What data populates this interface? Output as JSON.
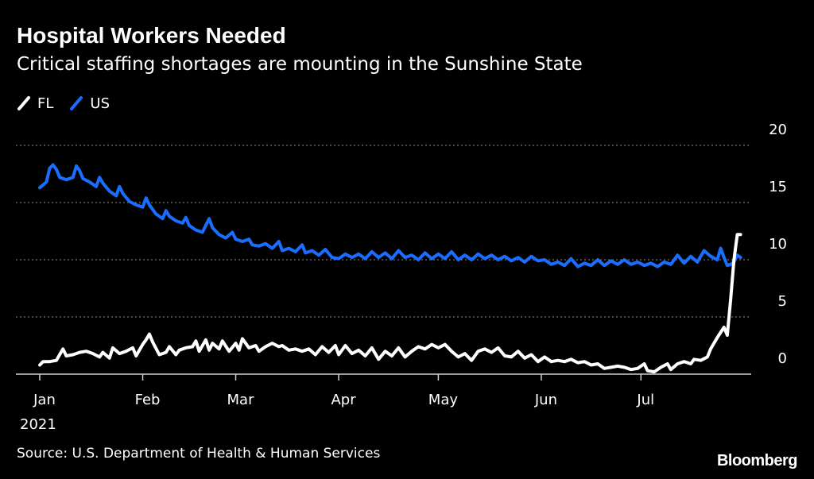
{
  "header": {
    "title": "Hospital Workers Needed",
    "subtitle": "Critical staffing shortages are mounting in the Sunshine State"
  },
  "footer": {
    "source": "Source: U.S. Department of Health & Human Services",
    "logo": "Bloomberg"
  },
  "colors": {
    "background": "#000000",
    "FL": "#ffffff",
    "US": "#1a6eff",
    "grid": "#8c8c8c",
    "text": "#ffffff"
  },
  "chart_data": {
    "type": "line",
    "title": "Hospital Workers Needed",
    "subtitle": "Critical staffing shortages are mounting in the Sunshine State",
    "xlabel": "",
    "ylabel": "",
    "ylim": [
      0,
      20
    ],
    "yticks": [
      0,
      5,
      10,
      15,
      20
    ],
    "ytick_labels": [
      "0",
      "5",
      "10",
      "15",
      "20"
    ],
    "xlim": [
      "2021-01-01",
      "2021-08-02"
    ],
    "xticks": [
      {
        "date": "2021-01-01",
        "label": "Jan",
        "sublabel": "2021"
      },
      {
        "date": "2021-02-01",
        "label": "Feb"
      },
      {
        "date": "2021-03-01",
        "label": "Mar"
      },
      {
        "date": "2021-04-01",
        "label": "Apr"
      },
      {
        "date": "2021-05-01",
        "label": "May"
      },
      {
        "date": "2021-06-01",
        "label": "Jun"
      },
      {
        "date": "2021-07-01",
        "label": "Jul"
      }
    ],
    "grid": true,
    "legend_position": "top-left",
    "series": [
      {
        "name": "FL",
        "color": "#ffffff",
        "points": [
          [
            "2021-01-01",
            0.8
          ],
          [
            "2021-01-02",
            1.1
          ],
          [
            "2021-01-04",
            1.1
          ],
          [
            "2021-01-06",
            1.2
          ],
          [
            "2021-01-08",
            2.2
          ],
          [
            "2021-01-09",
            1.6
          ],
          [
            "2021-01-11",
            1.7
          ],
          [
            "2021-01-13",
            1.9
          ],
          [
            "2021-01-15",
            2.0
          ],
          [
            "2021-01-17",
            1.8
          ],
          [
            "2021-01-19",
            1.5
          ],
          [
            "2021-01-20",
            1.9
          ],
          [
            "2021-01-22",
            1.4
          ],
          [
            "2021-01-23",
            2.3
          ],
          [
            "2021-01-25",
            1.8
          ],
          [
            "2021-01-27",
            2.0
          ],
          [
            "2021-01-29",
            2.3
          ],
          [
            "2021-01-30",
            1.6
          ],
          [
            "2021-02-01",
            2.6
          ],
          [
            "2021-02-02",
            3.0
          ],
          [
            "2021-02-03",
            3.5
          ],
          [
            "2021-02-04",
            2.8
          ],
          [
            "2021-02-06",
            1.7
          ],
          [
            "2021-02-08",
            1.9
          ],
          [
            "2021-02-09",
            2.4
          ],
          [
            "2021-02-11",
            1.7
          ],
          [
            "2021-02-12",
            2.1
          ],
          [
            "2021-02-14",
            2.3
          ],
          [
            "2021-02-16",
            2.4
          ],
          [
            "2021-02-17",
            2.9
          ],
          [
            "2021-02-18",
            2.0
          ],
          [
            "2021-02-20",
            3.0
          ],
          [
            "2021-02-21",
            2.1
          ],
          [
            "2021-02-22",
            2.7
          ],
          [
            "2021-02-24",
            2.2
          ],
          [
            "2021-02-25",
            2.9
          ],
          [
            "2021-02-27",
            2.0
          ],
          [
            "2021-03-01",
            2.7
          ],
          [
            "2021-03-02",
            2.1
          ],
          [
            "2021-03-03",
            3.1
          ],
          [
            "2021-03-05",
            2.3
          ],
          [
            "2021-03-07",
            2.5
          ],
          [
            "2021-03-08",
            2.0
          ],
          [
            "2021-03-10",
            2.4
          ],
          [
            "2021-03-12",
            2.7
          ],
          [
            "2021-03-14",
            2.4
          ],
          [
            "2021-03-15",
            2.5
          ],
          [
            "2021-03-17",
            2.1
          ],
          [
            "2021-03-19",
            2.2
          ],
          [
            "2021-03-21",
            2.0
          ],
          [
            "2021-03-23",
            2.2
          ],
          [
            "2021-03-25",
            1.7
          ],
          [
            "2021-03-27",
            2.4
          ],
          [
            "2021-03-29",
            1.9
          ],
          [
            "2021-03-31",
            2.5
          ],
          [
            "2021-04-01",
            1.7
          ],
          [
            "2021-04-03",
            2.5
          ],
          [
            "2021-04-05",
            1.8
          ],
          [
            "2021-04-07",
            2.1
          ],
          [
            "2021-04-09",
            1.6
          ],
          [
            "2021-04-11",
            2.3
          ],
          [
            "2021-04-13",
            1.3
          ],
          [
            "2021-04-15",
            2.0
          ],
          [
            "2021-04-17",
            1.6
          ],
          [
            "2021-04-19",
            2.3
          ],
          [
            "2021-04-21",
            1.5
          ],
          [
            "2021-04-23",
            2.0
          ],
          [
            "2021-04-25",
            2.4
          ],
          [
            "2021-04-27",
            2.2
          ],
          [
            "2021-04-29",
            2.6
          ],
          [
            "2021-05-01",
            2.3
          ],
          [
            "2021-05-03",
            2.6
          ],
          [
            "2021-05-05",
            2.0
          ],
          [
            "2021-05-07",
            1.5
          ],
          [
            "2021-05-09",
            1.8
          ],
          [
            "2021-05-11",
            1.2
          ],
          [
            "2021-05-13",
            2.0
          ],
          [
            "2021-05-15",
            2.2
          ],
          [
            "2021-05-17",
            1.9
          ],
          [
            "2021-05-19",
            2.3
          ],
          [
            "2021-05-21",
            1.6
          ],
          [
            "2021-05-23",
            1.5
          ],
          [
            "2021-05-25",
            2.0
          ],
          [
            "2021-05-27",
            1.4
          ],
          [
            "2021-05-29",
            1.7
          ],
          [
            "2021-05-31",
            1.1
          ],
          [
            "2021-06-02",
            1.5
          ],
          [
            "2021-06-04",
            1.1
          ],
          [
            "2021-06-06",
            1.2
          ],
          [
            "2021-06-08",
            1.1
          ],
          [
            "2021-06-10",
            1.3
          ],
          [
            "2021-06-12",
            1.0
          ],
          [
            "2021-06-14",
            1.1
          ],
          [
            "2021-06-16",
            0.8
          ],
          [
            "2021-06-18",
            0.9
          ],
          [
            "2021-06-20",
            0.5
          ],
          [
            "2021-06-22",
            0.6
          ],
          [
            "2021-06-24",
            0.7
          ],
          [
            "2021-06-26",
            0.6
          ],
          [
            "2021-06-28",
            0.4
          ],
          [
            "2021-06-30",
            0.5
          ],
          [
            "2021-07-02",
            0.9
          ],
          [
            "2021-07-03",
            0.3
          ],
          [
            "2021-07-05",
            0.2
          ],
          [
            "2021-07-07",
            0.6
          ],
          [
            "2021-07-09",
            0.9
          ],
          [
            "2021-07-10",
            0.4
          ],
          [
            "2021-07-12",
            0.9
          ],
          [
            "2021-07-14",
            1.1
          ],
          [
            "2021-07-16",
            0.9
          ],
          [
            "2021-07-17",
            1.3
          ],
          [
            "2021-07-19",
            1.2
          ],
          [
            "2021-07-21",
            1.5
          ],
          [
            "2021-07-22",
            2.2
          ],
          [
            "2021-07-24",
            3.2
          ],
          [
            "2021-07-26",
            4.1
          ],
          [
            "2021-07-27",
            3.4
          ],
          [
            "2021-07-28",
            6.5
          ],
          [
            "2021-07-29",
            10.0
          ],
          [
            "2021-07-30",
            12.2
          ],
          [
            "2021-07-31",
            12.2
          ]
        ]
      },
      {
        "name": "US",
        "color": "#1a6eff",
        "points": [
          [
            "2021-01-01",
            16.3
          ],
          [
            "2021-01-03",
            16.8
          ],
          [
            "2021-01-04",
            18.0
          ],
          [
            "2021-01-05",
            18.3
          ],
          [
            "2021-01-06",
            17.9
          ],
          [
            "2021-01-07",
            17.2
          ],
          [
            "2021-01-09",
            17.0
          ],
          [
            "2021-01-11",
            17.2
          ],
          [
            "2021-01-12",
            18.2
          ],
          [
            "2021-01-13",
            17.8
          ],
          [
            "2021-01-14",
            17.1
          ],
          [
            "2021-01-16",
            16.8
          ],
          [
            "2021-01-18",
            16.4
          ],
          [
            "2021-01-19",
            17.2
          ],
          [
            "2021-01-20",
            16.7
          ],
          [
            "2021-01-22",
            16.0
          ],
          [
            "2021-01-24",
            15.6
          ],
          [
            "2021-01-25",
            16.4
          ],
          [
            "2021-01-26",
            15.8
          ],
          [
            "2021-01-28",
            15.1
          ],
          [
            "2021-01-30",
            14.8
          ],
          [
            "2021-02-01",
            14.6
          ],
          [
            "2021-02-02",
            15.4
          ],
          [
            "2021-02-03",
            14.8
          ],
          [
            "2021-02-05",
            14.0
          ],
          [
            "2021-02-07",
            13.6
          ],
          [
            "2021-02-08",
            14.3
          ],
          [
            "2021-02-09",
            13.8
          ],
          [
            "2021-02-11",
            13.4
          ],
          [
            "2021-02-13",
            13.2
          ],
          [
            "2021-02-14",
            13.7
          ],
          [
            "2021-02-15",
            13.0
          ],
          [
            "2021-02-17",
            12.6
          ],
          [
            "2021-02-19",
            12.4
          ],
          [
            "2021-02-21",
            13.6
          ],
          [
            "2021-02-22",
            12.8
          ],
          [
            "2021-02-24",
            12.2
          ],
          [
            "2021-02-26",
            11.9
          ],
          [
            "2021-02-28",
            12.4
          ],
          [
            "2021-03-01",
            11.8
          ],
          [
            "2021-03-03",
            11.6
          ],
          [
            "2021-03-05",
            11.8
          ],
          [
            "2021-03-06",
            11.3
          ],
          [
            "2021-03-08",
            11.2
          ],
          [
            "2021-03-10",
            11.4
          ],
          [
            "2021-03-12",
            11.0
          ],
          [
            "2021-03-14",
            11.6
          ],
          [
            "2021-03-15",
            10.8
          ],
          [
            "2021-03-17",
            11.0
          ],
          [
            "2021-03-19",
            10.7
          ],
          [
            "2021-03-21",
            11.3
          ],
          [
            "2021-03-22",
            10.6
          ],
          [
            "2021-03-24",
            10.8
          ],
          [
            "2021-03-26",
            10.4
          ],
          [
            "2021-03-28",
            10.9
          ],
          [
            "2021-03-30",
            10.2
          ],
          [
            "2021-04-01",
            10.1
          ],
          [
            "2021-04-03",
            10.5
          ],
          [
            "2021-04-05",
            10.2
          ],
          [
            "2021-04-07",
            10.5
          ],
          [
            "2021-04-09",
            10.1
          ],
          [
            "2021-04-11",
            10.7
          ],
          [
            "2021-04-13",
            10.2
          ],
          [
            "2021-04-15",
            10.6
          ],
          [
            "2021-04-17",
            10.1
          ],
          [
            "2021-04-19",
            10.8
          ],
          [
            "2021-04-21",
            10.2
          ],
          [
            "2021-04-23",
            10.4
          ],
          [
            "2021-04-25",
            10.0
          ],
          [
            "2021-04-27",
            10.6
          ],
          [
            "2021-04-29",
            10.1
          ],
          [
            "2021-05-01",
            10.5
          ],
          [
            "2021-05-03",
            10.1
          ],
          [
            "2021-05-05",
            10.7
          ],
          [
            "2021-05-07",
            10.0
          ],
          [
            "2021-05-09",
            10.4
          ],
          [
            "2021-05-11",
            10.0
          ],
          [
            "2021-05-13",
            10.5
          ],
          [
            "2021-05-15",
            10.1
          ],
          [
            "2021-05-17",
            10.4
          ],
          [
            "2021-05-19",
            10.0
          ],
          [
            "2021-05-21",
            10.3
          ],
          [
            "2021-05-23",
            9.9
          ],
          [
            "2021-05-25",
            10.2
          ],
          [
            "2021-05-27",
            9.8
          ],
          [
            "2021-05-29",
            10.3
          ],
          [
            "2021-05-31",
            9.9
          ],
          [
            "2021-06-02",
            10.0
          ],
          [
            "2021-06-04",
            9.6
          ],
          [
            "2021-06-06",
            9.8
          ],
          [
            "2021-06-08",
            9.5
          ],
          [
            "2021-06-10",
            10.1
          ],
          [
            "2021-06-12",
            9.4
          ],
          [
            "2021-06-14",
            9.7
          ],
          [
            "2021-06-16",
            9.5
          ],
          [
            "2021-06-18",
            10.0
          ],
          [
            "2021-06-20",
            9.5
          ],
          [
            "2021-06-22",
            9.9
          ],
          [
            "2021-06-24",
            9.6
          ],
          [
            "2021-06-26",
            10.0
          ],
          [
            "2021-06-28",
            9.6
          ],
          [
            "2021-06-30",
            9.8
          ],
          [
            "2021-07-02",
            9.5
          ],
          [
            "2021-07-04",
            9.7
          ],
          [
            "2021-07-06",
            9.4
          ],
          [
            "2021-07-08",
            9.8
          ],
          [
            "2021-07-10",
            9.6
          ],
          [
            "2021-07-12",
            10.4
          ],
          [
            "2021-07-14",
            9.7
          ],
          [
            "2021-07-16",
            10.3
          ],
          [
            "2021-07-18",
            9.8
          ],
          [
            "2021-07-20",
            10.8
          ],
          [
            "2021-07-22",
            10.3
          ],
          [
            "2021-07-24",
            10.0
          ],
          [
            "2021-07-25",
            11.0
          ],
          [
            "2021-07-26",
            10.2
          ],
          [
            "2021-07-27",
            9.5
          ],
          [
            "2021-07-28",
            9.6
          ],
          [
            "2021-07-29",
            9.8
          ],
          [
            "2021-07-30",
            10.4
          ],
          [
            "2021-07-31",
            10.2
          ]
        ]
      }
    ]
  }
}
